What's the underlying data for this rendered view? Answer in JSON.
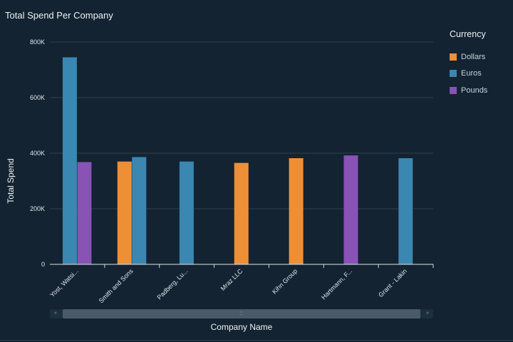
{
  "chart_data": {
    "type": "bar",
    "title": "Total Spend Per Company",
    "xlabel": "Company Name",
    "ylabel": "Total Spend",
    "ylim": [
      0,
      800000
    ],
    "yticks": [
      0,
      200000,
      400000,
      600000,
      800000
    ],
    "ytick_labels": [
      "0",
      "200K",
      "400K",
      "600K",
      "800K"
    ],
    "grid": true,
    "legend_title": "Currency",
    "legend_position": "top-right",
    "categories": [
      "Yost, Watsi...",
      "Smith and Sons",
      "Padberg, Lu...",
      "Mraz LLC",
      "Kihn Group",
      "Hartmann, F...",
      "Grant - Lakin"
    ],
    "series": [
      {
        "name": "Dollars",
        "color": "#ef8f35",
        "values": [
          null,
          370000,
          null,
          365000,
          382000,
          null,
          null
        ]
      },
      {
        "name": "Euros",
        "color": "#3a87b2",
        "values": [
          745000,
          386000,
          370000,
          null,
          null,
          null,
          382000
        ]
      },
      {
        "name": "Pounds",
        "color": "#8952b5",
        "values": [
          368000,
          null,
          null,
          null,
          null,
          392000,
          null
        ]
      }
    ]
  },
  "scrollbar": {
    "grip": "::",
    "left_arrow": "«",
    "right_arrow": "»"
  }
}
